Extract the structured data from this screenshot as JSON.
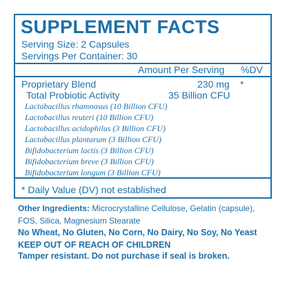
{
  "panel": {
    "title": "SUPPLEMENT FACTS",
    "serving_size": "Serving Size: 2 Capsules",
    "servings_per_container": "Servings Per Container:  30",
    "header_amount": "Amount Per Serving",
    "header_dv": "%DV",
    "blend": {
      "label": "Proprietary Blend",
      "amount": "230 mg",
      "dv": "*"
    },
    "activity": {
      "label": "Total Probiotic Activity",
      "amount": "35 Billion CFU"
    },
    "strains": [
      "Lactobacillus rhamnosus (10 Billion CFU)",
      "Lactobacillus reuteri (10 Billion CFU)",
      "Lactobacillus acidophilus (3 Billion CFU)",
      "Lactobacillus plantarum (3 Billion CFU)",
      "Bifidobacterium lactis (3 Billion CFU)",
      "Bifidobacterium breve (3 Billion CFU)",
      "Bifidobacterium longum (3 Billion CFU)"
    ],
    "footnote": "* Daily Value (DV) not established"
  },
  "other_ingredients": {
    "label": "Other Ingredients:",
    "text": " Microcrystalline Cellulose, Gelatin (capsule), FOS, Silica, Magnesium Stearate"
  },
  "free_from": "No Wheat, No Gluten, No Corn, No Dairy, No Soy, No Yeast",
  "warning": "KEEP OUT OF REACH OF CHILDREN",
  "tamper": "Tamper resistant.  Do not purchase if seal is broken.",
  "colors": {
    "ink": "#1d6fa9",
    "background": "#ffffff"
  }
}
